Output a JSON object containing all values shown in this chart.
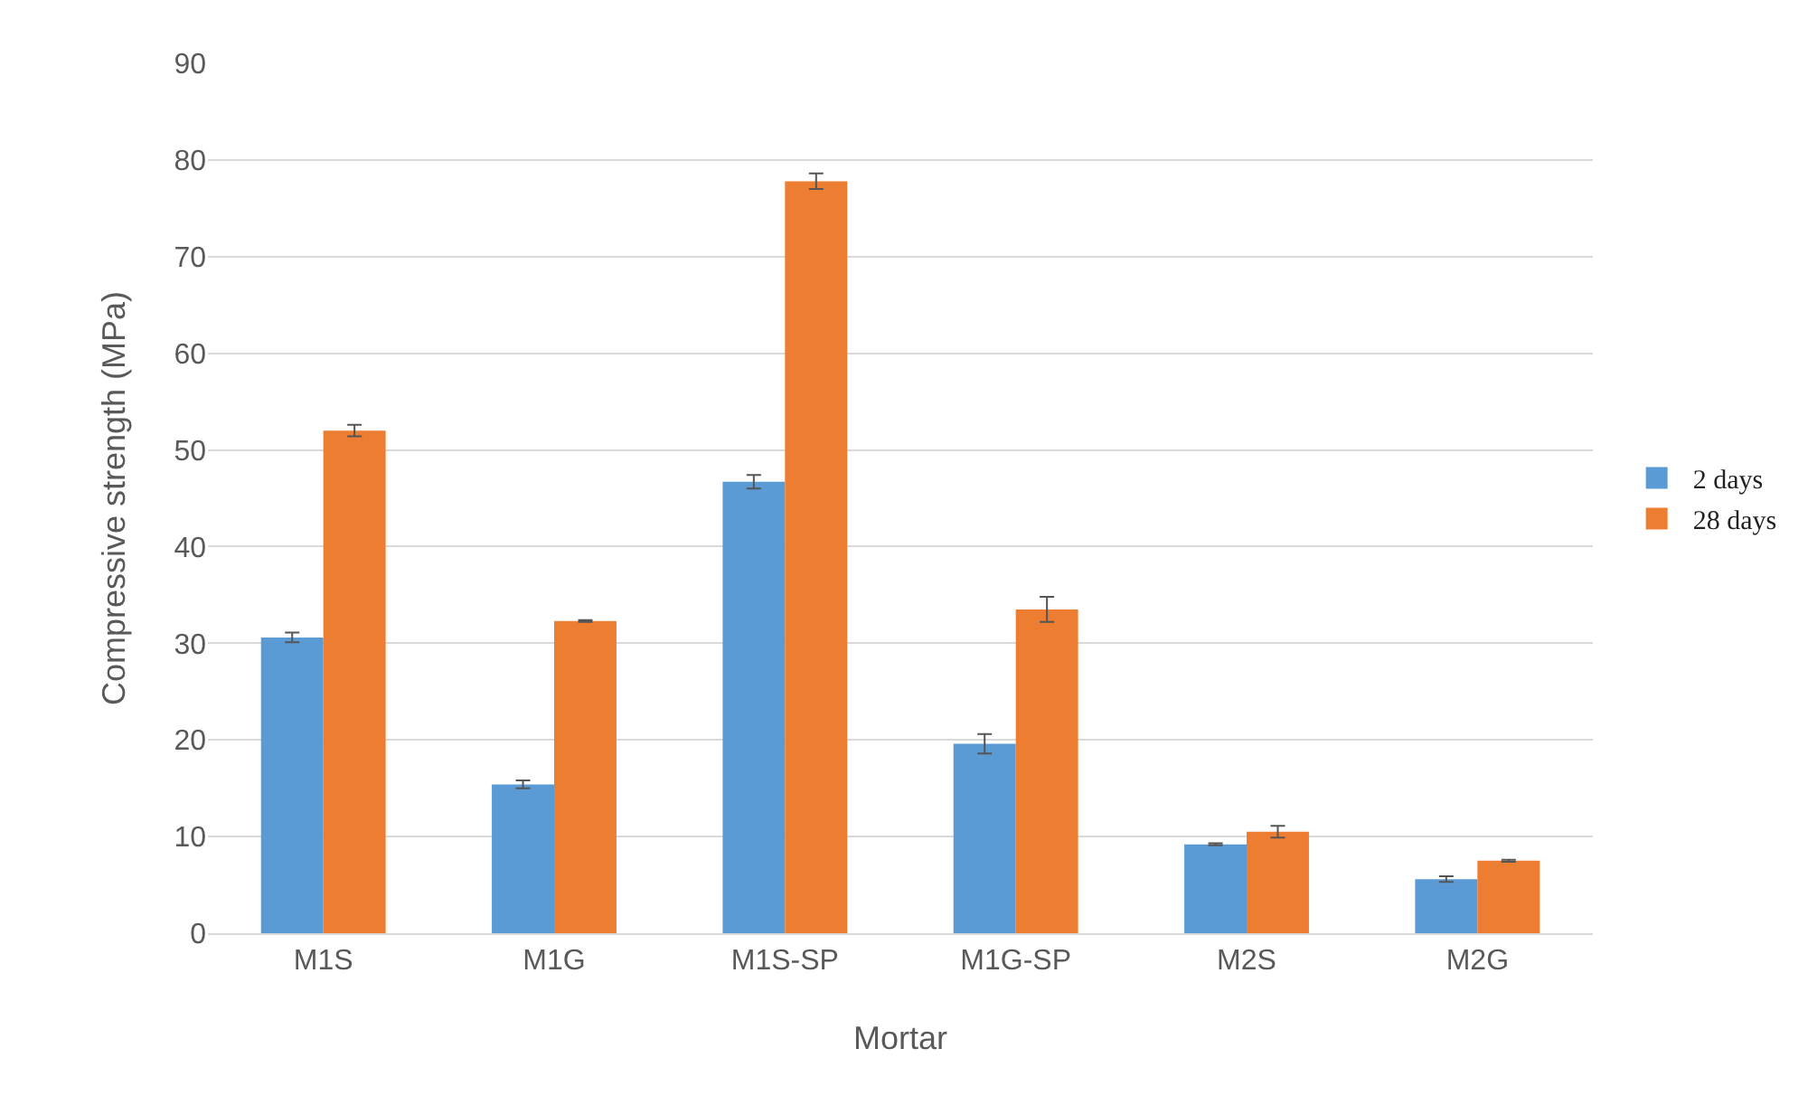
{
  "chart_data": {
    "type": "bar",
    "xlabel": "Mortar",
    "ylabel": "Compressive strength (MPa)",
    "categories": [
      "M1S",
      "M1G",
      "M1S-SP",
      "M1G-SP",
      "M2S",
      "M2G"
    ],
    "series": [
      {
        "name": "2 days",
        "color": "#5b9bd5",
        "values": [
          30.6,
          15.4,
          46.7,
          19.6,
          9.2,
          5.6
        ],
        "errors": [
          0.5,
          0.4,
          0.7,
          1.0,
          0.1,
          0.3
        ]
      },
      {
        "name": "28 days",
        "color": "#ed7d31",
        "values": [
          52.0,
          32.3,
          77.8,
          33.5,
          10.5,
          7.5
        ],
        "errors": [
          0.6,
          0.1,
          0.8,
          1.3,
          0.6,
          0.1
        ]
      }
    ],
    "ylim": [
      0,
      90
    ],
    "yticks": [
      0,
      10,
      20,
      30,
      40,
      50,
      60,
      70,
      80,
      90
    ],
    "grid": "y",
    "legend": "right"
  }
}
